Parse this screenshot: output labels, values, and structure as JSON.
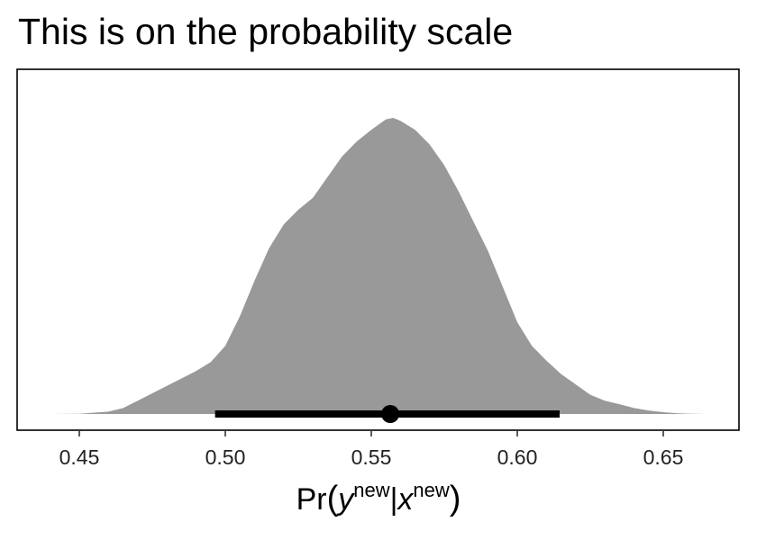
{
  "chart_data": {
    "type": "area",
    "title": "This is on the probability scale",
    "xlabel": {
      "prefix": "Pr",
      "open": "(",
      "var1": "y",
      "sup1": "new",
      "sep": "|",
      "var2": "x",
      "sup2": "new",
      "close": ")"
    },
    "ylabel": "",
    "xlim": [
      0.44,
      0.665
    ],
    "xticks": [
      0.45,
      0.5,
      0.55,
      0.6,
      0.65
    ],
    "xtick_labels": [
      "0.45",
      "0.50",
      "0.55",
      "0.60",
      "0.65"
    ],
    "grid": false,
    "density": {
      "x": [
        0.44,
        0.45,
        0.46,
        0.465,
        0.47,
        0.475,
        0.48,
        0.485,
        0.49,
        0.495,
        0.5,
        0.505,
        0.51,
        0.515,
        0.52,
        0.525,
        0.53,
        0.535,
        0.54,
        0.545,
        0.55,
        0.555,
        0.5575,
        0.56,
        0.565,
        0.57,
        0.575,
        0.58,
        0.585,
        0.59,
        0.595,
        0.6,
        0.605,
        0.61,
        0.615,
        0.62,
        0.625,
        0.63,
        0.635,
        0.64,
        0.645,
        0.65,
        0.655,
        0.66,
        0.665
      ],
      "y": [
        0.0,
        0.001,
        0.008,
        0.02,
        0.045,
        0.07,
        0.095,
        0.12,
        0.145,
        0.175,
        0.23,
        0.33,
        0.45,
        0.56,
        0.64,
        0.69,
        0.73,
        0.8,
        0.87,
        0.92,
        0.96,
        0.995,
        1.0,
        0.99,
        0.96,
        0.91,
        0.84,
        0.75,
        0.65,
        0.55,
        0.43,
        0.31,
        0.23,
        0.18,
        0.135,
        0.1,
        0.065,
        0.045,
        0.033,
        0.02,
        0.012,
        0.006,
        0.002,
        0.0005,
        0.0
      ]
    },
    "interval": {
      "lower": 0.4965,
      "upper": 0.6145,
      "point": 0.5565
    },
    "colors": {
      "density_fill": "#999999",
      "interval": "#000000",
      "frame": "#000000"
    }
  }
}
